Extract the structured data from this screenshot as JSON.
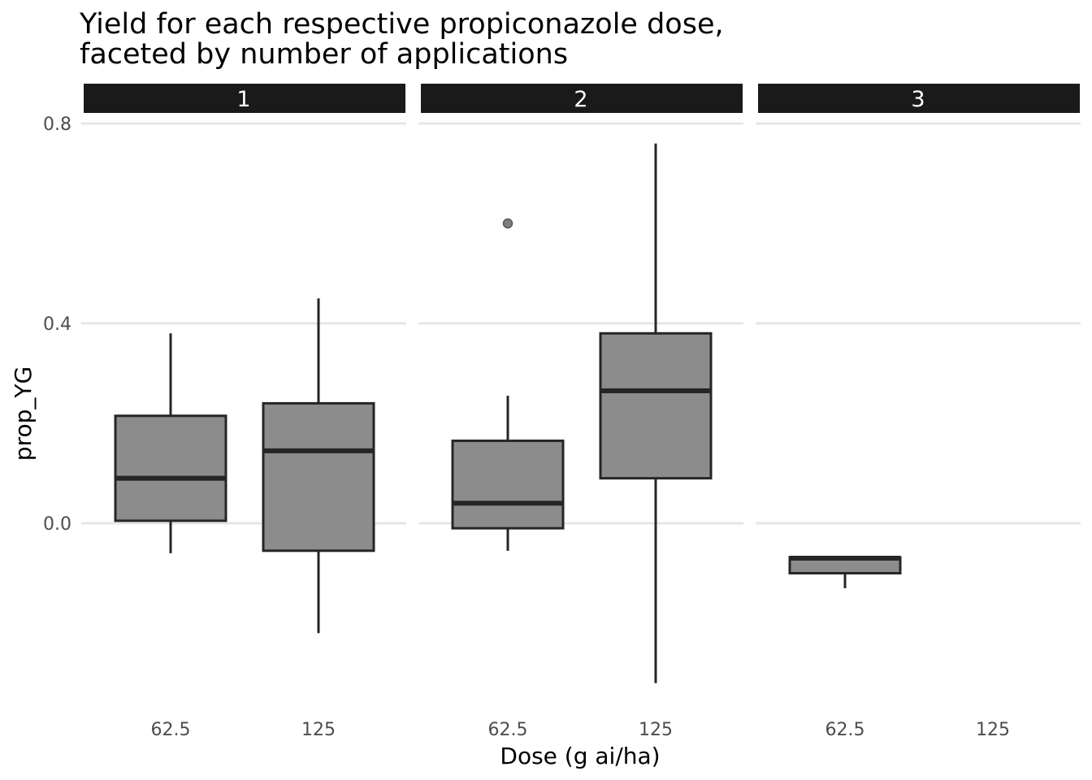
{
  "chart_data": {
    "type": "boxplot",
    "title_lines": [
      "Yield for each respective propiconazole dose,",
      "faceted by number of applications"
    ],
    "xlabel": "Dose (g ai/ha)",
    "ylabel": "prop_YG",
    "categories": [
      "62.5",
      "125"
    ],
    "y_ticks": [
      0.0,
      0.4,
      0.8
    ],
    "y_tick_labels": [
      "0.0",
      "0.4",
      "0.8"
    ],
    "ylim": [
      -0.37,
      0.83
    ],
    "grid": true,
    "colors": {
      "box_fill": "#8c8c8c",
      "box_stroke": "#262626",
      "strip_bg": "#1a1a1a",
      "grid": "#e6e6e6"
    },
    "facets": [
      {
        "label": "1",
        "boxes": [
          {
            "category": "62.5",
            "whisker_low": -0.06,
            "q1": 0.005,
            "median": 0.09,
            "q3": 0.215,
            "whisker_high": 0.38,
            "outliers": []
          },
          {
            "category": "125",
            "whisker_low": -0.22,
            "q1": -0.055,
            "median": 0.145,
            "q3": 0.24,
            "whisker_high": 0.45,
            "outliers": []
          }
        ]
      },
      {
        "label": "2",
        "boxes": [
          {
            "category": "62.5",
            "whisker_low": -0.055,
            "q1": -0.01,
            "median": 0.04,
            "q3": 0.165,
            "whisker_high": 0.255,
            "outliers": [
              0.6
            ]
          },
          {
            "category": "125",
            "whisker_low": -0.32,
            "q1": 0.09,
            "median": 0.265,
            "q3": 0.38,
            "whisker_high": 0.76,
            "outliers": []
          }
        ]
      },
      {
        "label": "3",
        "boxes": [
          {
            "category": "62.5",
            "whisker_low": -0.13,
            "q1": -0.1,
            "median": -0.07,
            "q3": -0.068,
            "whisker_high": -0.065,
            "outliers": []
          }
        ]
      }
    ]
  }
}
